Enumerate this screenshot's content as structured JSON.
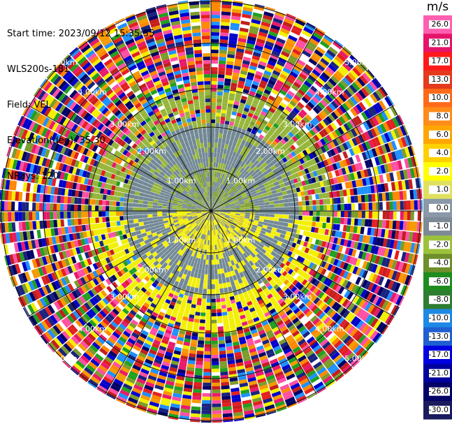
{
  "header": {
    "start_time": "Start time: 2023/09/12 15:35:35",
    "station": "WLS200s-181",
    "field": "Field: VEL",
    "elevation": "Elevation(deg): 35.30",
    "nrays": "NRays: 120"
  },
  "ppi": {
    "range_ring_labels": [
      "1.00km",
      "2.00km",
      "3.00km",
      "4.00km",
      "5.00km"
    ],
    "num_rays": 120,
    "zones": [
      {
        "name": "north-near",
        "colors": [
          "#7c9c2c",
          "#96b53a",
          "#728895",
          "#728895"
        ]
      },
      {
        "name": "south-near",
        "colors": [
          "#f2ef00",
          "#f2ef00",
          "#d9c81c",
          "#728895"
        ]
      },
      {
        "name": "noise",
        "colors": [
          "#1a237e",
          "#0000cc",
          "#e81a6b",
          "#ff4fa3",
          "#f2ef00",
          "#ff8800",
          "#e32020",
          "#20a020",
          "#7c9c2c",
          "#1e90ff",
          "#ffffff",
          "#000066",
          "#f59a00",
          "#c41e1e"
        ]
      }
    ]
  },
  "colorbar": {
    "unit": "m/s",
    "ticks": [
      "26.0",
      "21.0",
      "17.0",
      "13.0",
      "10.0",
      "8.0",
      "6.0",
      "4.0",
      "2.0",
      "1.0",
      "0.0",
      "-1.0",
      "-2.0",
      "-4.0",
      "-6.0",
      "-8.0",
      "-10.0",
      "-13.0",
      "-17.0",
      "-21.0",
      "-26.0",
      "-30.0"
    ],
    "colors": [
      "#ff5fb0",
      "#e5146a",
      "#ff1a1a",
      "#e53a1e",
      "#ff6a1a",
      "#ff8c1a",
      "#ffa500",
      "#ffd000",
      "#ffff00",
      "#e0e060",
      "#8a98a8",
      "#7d8a96",
      "#9bc23a",
      "#6f8f2a",
      "#1e8c1e",
      "#2e7d32",
      "#1e88e5",
      "#1f5fd0",
      "#0000e0",
      "#00009c",
      "#000066",
      "#1a1a5e"
    ]
  }
}
